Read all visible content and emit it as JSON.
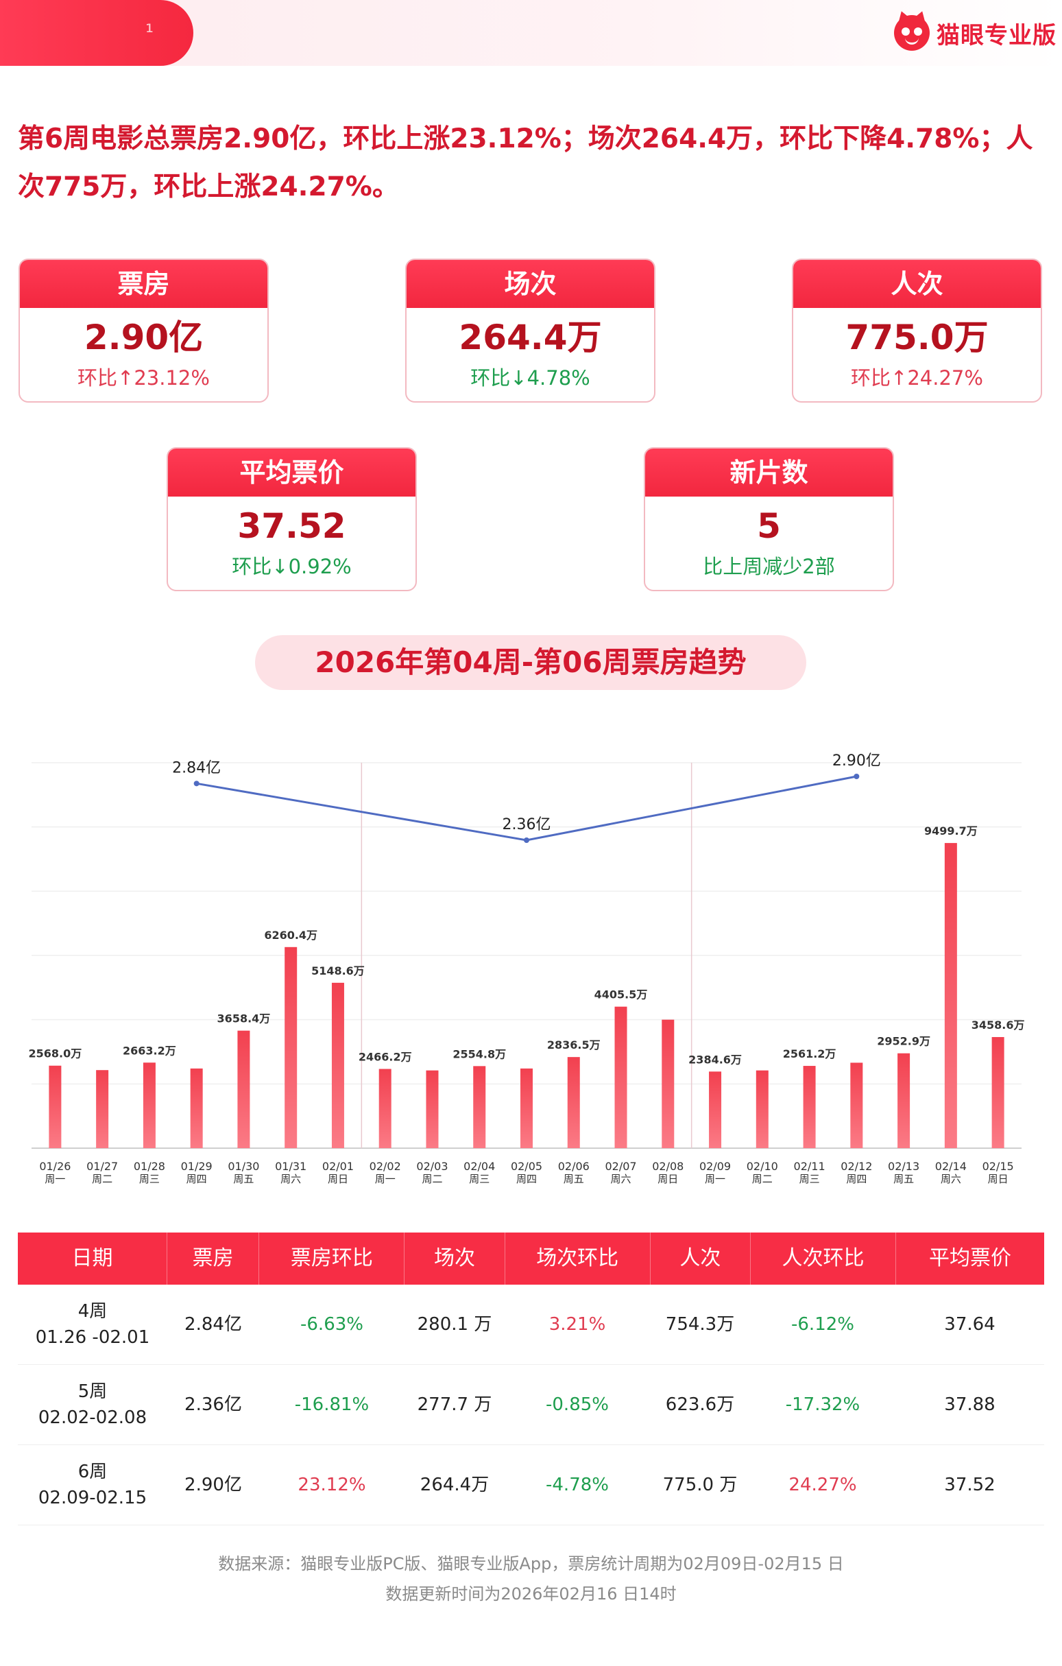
{
  "brand": {
    "name": "猫眼专业版"
  },
  "headline": "第6周电影总票房2.90亿，环比上涨23.12%；场次264.4万，环比下降4.78%；人次775万，环比上涨24.27%。",
  "cards": [
    {
      "title": "票房",
      "value": "2.90亿",
      "sub": "环比↑23.12%",
      "trend": "up"
    },
    {
      "title": "场次",
      "value": "264.4万",
      "sub": "环比↓4.78%",
      "trend": "down"
    },
    {
      "title": "人次",
      "value": "775.0万",
      "sub": "环比↑24.27%",
      "trend": "up"
    },
    {
      "title": "平均票价",
      "value": "37.52",
      "sub": "环比↓0.92%",
      "trend": "down"
    },
    {
      "title": "新片数",
      "value": "5",
      "sub": "比上周减少2部",
      "trend": "down"
    }
  ],
  "trend_title": "2026年第04周-第06周票房趋势",
  "chart_data": {
    "type": "bar",
    "unit": "万",
    "categories": [
      "01/26",
      "01/27",
      "01/28",
      "01/29",
      "01/30",
      "01/31",
      "02/01",
      "02/02",
      "02/03",
      "02/04",
      "02/05",
      "02/06",
      "02/07",
      "02/08",
      "02/09",
      "02/10",
      "02/11",
      "02/12",
      "02/13",
      "02/14",
      "02/15"
    ],
    "weekdays": [
      "周一",
      "周二",
      "周三",
      "周四",
      "周五",
      "周六",
      "周日",
      "周一",
      "周二",
      "周三",
      "周四",
      "周五",
      "周六",
      "周日",
      "周一",
      "周二",
      "周三",
      "周四",
      "周五",
      "周六",
      "周日"
    ],
    "values": [
      2568.0,
      2430,
      2663.2,
      2480,
      3658.4,
      6260.4,
      5148.6,
      2466.2,
      2420,
      2554.8,
      2480,
      2836.5,
      4405.5,
      4000,
      2384.6,
      2420,
      2561.2,
      2660,
      2952.9,
      9499.7,
      3458.6
    ],
    "value_labels": [
      "2568.0万",
      "",
      "2663.2万",
      "",
      "3658.4万",
      "6260.4万",
      "5148.6万",
      "2466.2万",
      "",
      "2554.8万",
      "",
      "2836.5万",
      "4405.5万",
      "",
      "2384.6万",
      "",
      "2561.2万",
      "",
      "2952.9万",
      "9499.7万",
      "3458.6万"
    ],
    "ylim": [
      0,
      12000
    ],
    "grid": true,
    "color": "#f2404f",
    "weekly_line": {
      "color": "#4f6bc2",
      "points": [
        {
          "category": "01/29",
          "value": 2.84,
          "label": "2.84亿"
        },
        {
          "category": "02/05",
          "value": 2.36,
          "label": "2.36亿"
        },
        {
          "category": "02/12",
          "value": 2.9,
          "label": "2.90亿"
        }
      ]
    }
  },
  "table": {
    "headers": [
      "日期",
      "票房",
      "票房环比",
      "场次",
      "场次环比",
      "人次",
      "人次环比",
      "平均票价"
    ],
    "rows": [
      {
        "week": "4周",
        "range": "01.26 -02.01",
        "box": "2.84亿",
        "box_chg": "-6.63%",
        "box_dir": "down",
        "shows": "280.1 万",
        "shows_chg": "3.21%",
        "shows_dir": "up",
        "adm": "754.3万",
        "adm_chg": "-6.12%",
        "adm_dir": "down",
        "price": "37.64"
      },
      {
        "week": "5周",
        "range": "02.02-02.08",
        "box": "2.36亿",
        "box_chg": "-16.81%",
        "box_dir": "down",
        "shows": "277.7 万",
        "shows_chg": "-0.85%",
        "shows_dir": "down",
        "adm": "623.6万",
        "adm_chg": "-17.32%",
        "adm_dir": "down",
        "price": "37.88"
      },
      {
        "week": "6周",
        "range": "02.09-02.15",
        "box": "2.90亿",
        "box_chg": "23.12%",
        "box_dir": "up",
        "shows": "264.4万",
        "shows_chg": "-4.78%",
        "shows_dir": "down",
        "adm": "775.0 万",
        "adm_chg": "24.27%",
        "adm_dir": "up",
        "price": "37.52"
      }
    ]
  },
  "footer": {
    "source": "数据来源：猫眼专业版PC版、猫眼专业版App，票房统计周期为02月09日-02月15 日",
    "updated": "数据更新时间为2026年02月16 日14时"
  }
}
